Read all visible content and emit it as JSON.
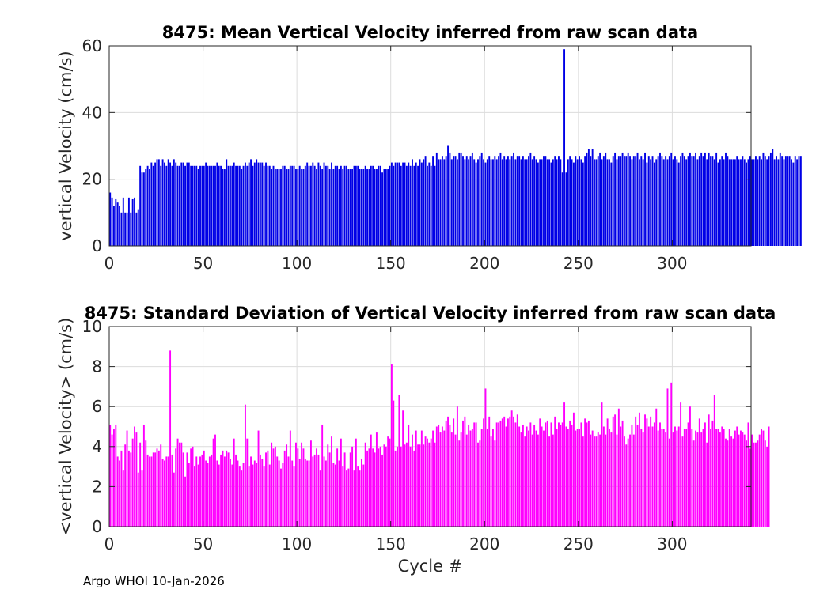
{
  "footer": "Argo WHOI 10-Jan-2026",
  "chart_data": [
    {
      "type": "bar",
      "title": "8475: Mean Vertical Velocity inferred from raw scan data",
      "xlabel": "",
      "ylabel": "vertical Velocity (cm/s)",
      "xlim": [
        0,
        342
      ],
      "ylim": [
        0,
        60
      ],
      "xticks": [
        0,
        50,
        100,
        150,
        200,
        250,
        300
      ],
      "yticks": [
        0,
        20,
        40,
        60
      ],
      "grid": true,
      "color": "#0000e6",
      "x_start": 0,
      "values": [
        16,
        14.5,
        12,
        14,
        13,
        12,
        10,
        14.5,
        10,
        10,
        14.5,
        10,
        14,
        14.5,
        10,
        11,
        24,
        22,
        22,
        23,
        24,
        23,
        25,
        24,
        25,
        26,
        26,
        24,
        26,
        25,
        24,
        26,
        25,
        24,
        26,
        25,
        24,
        24,
        25,
        25,
        24,
        25,
        25,
        24,
        24,
        24,
        24,
        23,
        24,
        24,
        24,
        25,
        24,
        24,
        24,
        24,
        24,
        25,
        24,
        24,
        23,
        23,
        26,
        24,
        24,
        24,
        25,
        24,
        24,
        24,
        23,
        24,
        25,
        24,
        25,
        26,
        24,
        25,
        26,
        25,
        25,
        25,
        24,
        25,
        24,
        24,
        23,
        24,
        23,
        23,
        23,
        23,
        24,
        24,
        23,
        23,
        24,
        24,
        24,
        23,
        23,
        24,
        23,
        23,
        24,
        25,
        24,
        24,
        25,
        24,
        23,
        25,
        24,
        23,
        25,
        24,
        24,
        23,
        25,
        23,
        24,
        24,
        23,
        24,
        23,
        24,
        24,
        23,
        23,
        23,
        24,
        24,
        24,
        23,
        23,
        23,
        24,
        23,
        23,
        24,
        24,
        23,
        23,
        24,
        24,
        22,
        23,
        23,
        23,
        24,
        25,
        24,
        25,
        25,
        25,
        24,
        25,
        25,
        24,
        25,
        24,
        26,
        24,
        25,
        24,
        26,
        25,
        26,
        27,
        24,
        25,
        24,
        27,
        24,
        28,
        26,
        26,
        27,
        26,
        27,
        30,
        28,
        26,
        27,
        27,
        26,
        28,
        28,
        27,
        26,
        27,
        26,
        27,
        28,
        26,
        25,
        26,
        27,
        28,
        26,
        25,
        26,
        27,
        26,
        26,
        27,
        26,
        27,
        28,
        26,
        27,
        26,
        27,
        26,
        27,
        28,
        26,
        27,
        27,
        26,
        27,
        26,
        26,
        27,
        28,
        26,
        27,
        26,
        25,
        26,
        26,
        27,
        27,
        26,
        26,
        25,
        26,
        27,
        26,
        27,
        26,
        22,
        59,
        22,
        26,
        27,
        26,
        25,
        27,
        26,
        27,
        26,
        25,
        27,
        28,
        29,
        27,
        29,
        26,
        26,
        27,
        28,
        26,
        27,
        28,
        26,
        26,
        25,
        27,
        28,
        26,
        27,
        27,
        28,
        27,
        27,
        28,
        27,
        26,
        27,
        27,
        28,
        26,
        27,
        26,
        28,
        25,
        27,
        26,
        27,
        25,
        26,
        27,
        28,
        27,
        26,
        27,
        26,
        27,
        28,
        26,
        27,
        26,
        25,
        27,
        28,
        27,
        26,
        27,
        28,
        27,
        27,
        28,
        26,
        27,
        28,
        27,
        28,
        26,
        28,
        27,
        27,
        26,
        28,
        25,
        26,
        27,
        26,
        28,
        27,
        26,
        26,
        26,
        26,
        27,
        26,
        26,
        27,
        26,
        25,
        26,
        27,
        26,
        26,
        27,
        26,
        27,
        26,
        28,
        27,
        26,
        27,
        28,
        29,
        26,
        27,
        26,
        28,
        27,
        26,
        27,
        27,
        27,
        26,
        25,
        27,
        26,
        27,
        27
      ]
    },
    {
      "type": "bar",
      "title": "8475: Standard Deviation of Vertical Velocity inferred from raw scan data",
      "xlabel": "Cycle #",
      "ylabel": "<vertical Velocity> (cm/s)",
      "xlim": [
        0,
        342
      ],
      "ylim": [
        0,
        10
      ],
      "xticks": [
        0,
        50,
        100,
        150,
        200,
        250,
        300
      ],
      "yticks": [
        0,
        2,
        4,
        6,
        8,
        10
      ],
      "grid": true,
      "color": "#ff00ff",
      "x_start": 0,
      "values": [
        5.1,
        4.6,
        4.9,
        5.1,
        3.5,
        3.3,
        3.8,
        2.8,
        4.1,
        4.8,
        3.8,
        3.7,
        4.4,
        5,
        4.7,
        2.7,
        4.2,
        2.8,
        5.1,
        4.3,
        3.6,
        3.5,
        3.5,
        3.7,
        3.7,
        3.9,
        3.8,
        4.1,
        3.4,
        3.3,
        3.5,
        3.5,
        8.8,
        3.6,
        2.7,
        3.9,
        4.4,
        4.2,
        4.2,
        3.7,
        2.5,
        3.7,
        3.2,
        3.9,
        4,
        3,
        3.5,
        3.1,
        3.5,
        3.6,
        3.8,
        3.3,
        3.2,
        3.5,
        3.6,
        4.4,
        4.6,
        3.3,
        3.1,
        3.6,
        3.8,
        3.5,
        3.8,
        3.7,
        3.4,
        3.1,
        4.4,
        3.6,
        3.3,
        3,
        2.8,
        3.2,
        6.1,
        4.4,
        3,
        3.5,
        3.1,
        3.3,
        3.2,
        4.8,
        3.6,
        3.4,
        3,
        3.7,
        3.8,
        3.1,
        4.2,
        3.9,
        4,
        3.5,
        3.3,
        2.9,
        3.2,
        3.8,
        4.1,
        3.5,
        4.8,
        3.3,
        3,
        4.2,
        3.9,
        3.4,
        4.2,
        3.9,
        3.4,
        3.3,
        3.3,
        4.3,
        3.5,
        3.6,
        3.9,
        3.6,
        2.8,
        5.1,
        3.5,
        3.3,
        4.1,
        3.7,
        4.5,
        3.2,
        3.1,
        3.9,
        3.3,
        4.4,
        3,
        3.7,
        2.8,
        2.9,
        3.7,
        4,
        2.8,
        4.4,
        3,
        2.8,
        3.4,
        3.1,
        4.2,
        3.8,
        3.9,
        4.6,
        3.9,
        3.7,
        4.7,
        3.9,
        4,
        3.6,
        4.1,
        4,
        4.5,
        4.4,
        8.1,
        6.3,
        3.8,
        4,
        6.6,
        4,
        5.8,
        4.1,
        4.2,
        5.1,
        4,
        4.6,
        3.8,
        4.8,
        4.1,
        4.1,
        4.8,
        4.1,
        4.5,
        4.4,
        4.2,
        4.4,
        4.8,
        4.2,
        5,
        5.1,
        4.7,
        5,
        4.8,
        5.3,
        5.5,
        5.1,
        4.7,
        5.4,
        4.6,
        6,
        4.3,
        4.7,
        5.3,
        5.5,
        4.6,
        5.1,
        4.8,
        4.9,
        5.2,
        5.2,
        4.2,
        4.3,
        4.9,
        5.4,
        6.9,
        4.9,
        5.5,
        4.5,
        4.9,
        4.3,
        5.2,
        5.2,
        5.3,
        5.4,
        5.5,
        5,
        5.4,
        5.5,
        5.8,
        5.5,
        5.2,
        5.6,
        5,
        4.7,
        5.1,
        4.5,
        5,
        4.8,
        5.2,
        4.6,
        5.1,
        4.8,
        4.6,
        5.4,
        5,
        4.8,
        5.2,
        5.3,
        4.5,
        5.2,
        4.6,
        5.5,
        4.9,
        5.2,
        5.1,
        5.2,
        6.2,
        5,
        4.9,
        5.3,
        5.1,
        5.7,
        4.8,
        4.9,
        4.9,
        5.2,
        4.5,
        5.4,
        5.2,
        5.3,
        4.6,
        4.8,
        4.5,
        4.5,
        4.7,
        4.6,
        6.2,
        5,
        4.6,
        5.4,
        4.9,
        4.7,
        5.5,
        5.6,
        4.6,
        5.9,
        5,
        5.3,
        4.5,
        4.1,
        4.4,
        4.6,
        5.1,
        4.6,
        5.5,
        5.1,
        5.7,
        4.9,
        4.7,
        5.6,
        5.4,
        5,
        5.5,
        5,
        5.2,
        5.9,
        4.8,
        5.2,
        4.9,
        4.9,
        4.7,
        6.9,
        4.4,
        7.2,
        4.7,
        5,
        4.8,
        5,
        6.2,
        4.5,
        4.9,
        4.9,
        5.2,
        6,
        4.9,
        4.3,
        4.8,
        4.7,
        5.4,
        4.7,
        4.9,
        5.2,
        4.2,
        5.6,
        4.9,
        5.3,
        6.6,
        4.9,
        4.9,
        4.7,
        5,
        4.9,
        4.4,
        4.3,
        4.9,
        4.5,
        4.4,
        4.8,
        5,
        4.6,
        4.8,
        4.7,
        4.6,
        4.3,
        5.2,
        3.9,
        4.6,
        4.2,
        4.2,
        4.3,
        4.6,
        4.9,
        4.8,
        4.3,
        4,
        5
      ]
    }
  ]
}
